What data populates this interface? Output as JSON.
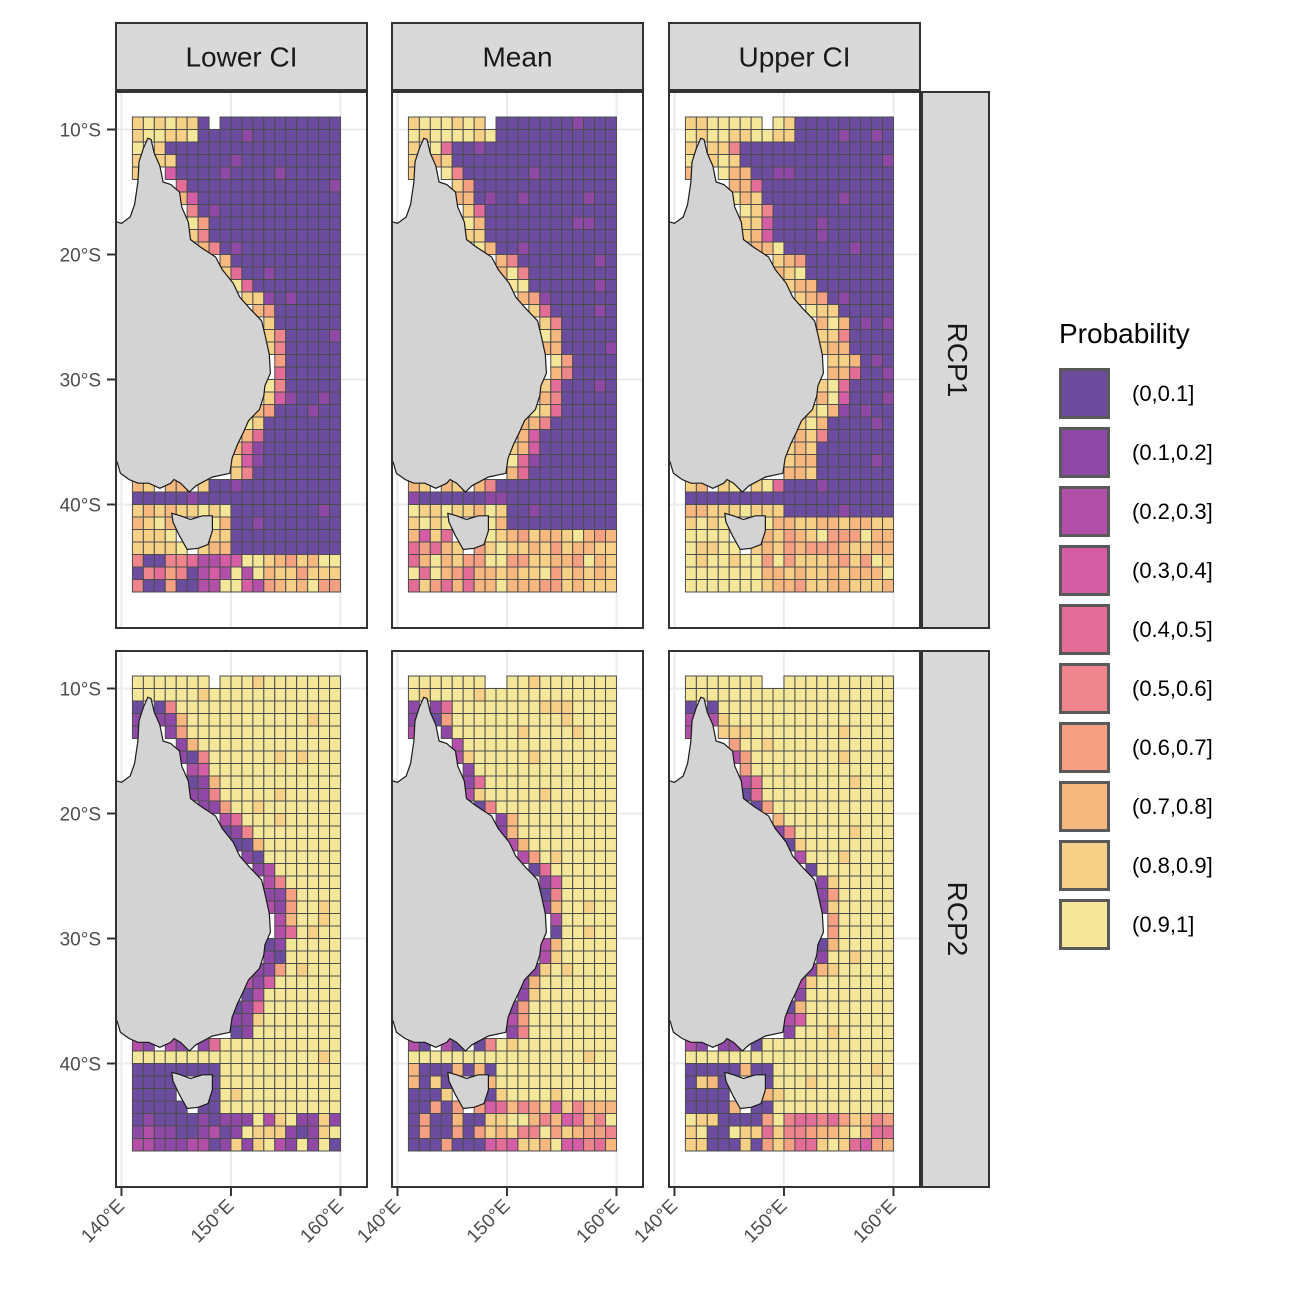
{
  "legend": {
    "title": "Probability",
    "items": [
      {
        "label": "(0,0.1]",
        "color": "#6b4c9f"
      },
      {
        "label": "(0.1,0.2]",
        "color": "#8e49a6"
      },
      {
        "label": "(0.2,0.3]",
        "color": "#b24fa8"
      },
      {
        "label": "(0.3,0.4]",
        "color": "#d45da5"
      },
      {
        "label": "(0.4,0.5]",
        "color": "#e46d98"
      },
      {
        "label": "(0.5,0.6]",
        "color": "#ef858c"
      },
      {
        "label": "(0.6,0.7]",
        "color": "#f5a082"
      },
      {
        "label": "(0.7,0.8]",
        "color": "#f7b87f"
      },
      {
        "label": "(0.8,0.9]",
        "color": "#f6d086"
      },
      {
        "label": "(0.9,1]",
        "color": "#f4e79a"
      }
    ]
  },
  "facets": {
    "columns": [
      "Lower CI",
      "Mean",
      "Upper CI"
    ],
    "rows": [
      "RCP1",
      "RCP2"
    ]
  },
  "axes": {
    "x": {
      "ticks": [
        140,
        150,
        160
      ],
      "labels": [
        "140°E",
        "150°E",
        "160°E"
      ]
    },
    "y": {
      "ticks": [
        -10,
        -20,
        -30,
        -40
      ],
      "labels": [
        "10°S",
        "20°S",
        "30°S",
        "40°S"
      ]
    }
  },
  "colors": {
    "land": "#d3d3d3",
    "cell_border": "#4d4d4d",
    "strip_fill": "#d9d9d9",
    "panel_border": "#333333",
    "grid": "#ebebeb"
  }
}
